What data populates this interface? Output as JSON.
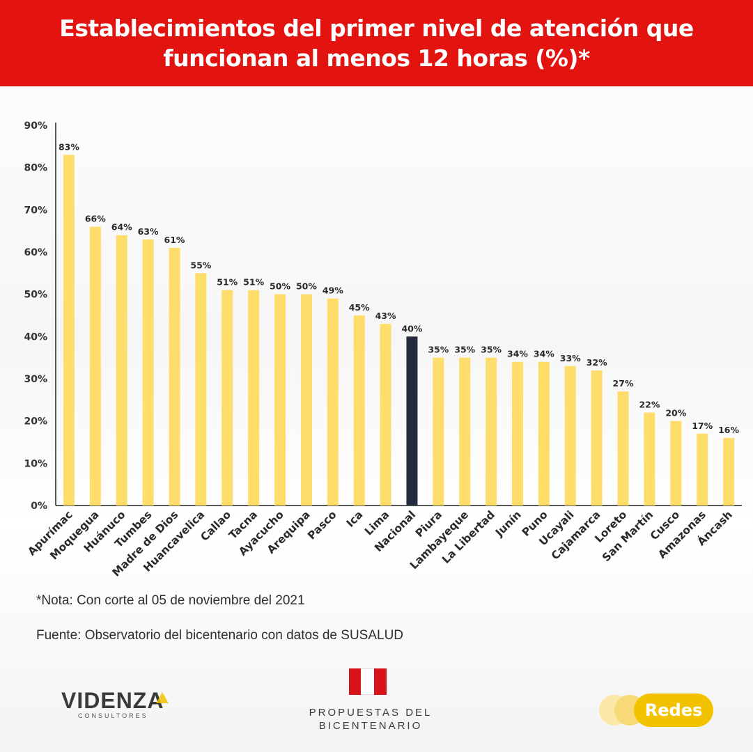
{
  "header": {
    "title_line1": "Establecimientos del primer nivel de atención que",
    "title_line2": "funcionan al menos 12 horas (%)*"
  },
  "chart_data": {
    "type": "bar",
    "categories": [
      "Apurímac",
      "Moquegua",
      "Huánuco",
      "Tumbes",
      "Madre de Dios",
      "Huancavelica",
      "Callao",
      "Tacna",
      "Ayacucho",
      "Arequipa",
      "Pasco",
      "Ica",
      "Lima",
      "Nacional",
      "Piura",
      "Lambayeque",
      "La Libertad",
      "Junín",
      "Puno",
      "Ucayali",
      "Cajamarca",
      "Loreto",
      "San Martín",
      "Cusco",
      "Amazonas",
      "Áncash"
    ],
    "values": [
      83,
      66,
      64,
      63,
      61,
      55,
      51,
      51,
      50,
      50,
      49,
      45,
      43,
      40,
      35,
      35,
      35,
      34,
      34,
      33,
      32,
      27,
      22,
      20,
      17,
      16
    ],
    "data_labels": [
      "83%",
      "66%",
      "64%",
      "63%",
      "61%",
      "55%",
      "51%",
      "51%",
      "50%",
      "50%",
      "49%",
      "45%",
      "43%",
      "40%",
      "35%",
      "35%",
      "35%",
      "34%",
      "34%",
      "33%",
      "32%",
      "27%",
      "22%",
      "20%",
      "17%",
      "16%"
    ],
    "yticks": [
      "0%",
      "10%",
      "20%",
      "30%",
      "40%",
      "50%",
      "60%",
      "70%",
      "80%",
      "90%"
    ],
    "ylim": [
      0,
      90
    ],
    "highlight_category": "Nacional",
    "bar_color": "#ffdd6b",
    "highlight_color": "#252a3e",
    "grid": false
  },
  "footer": {
    "note": "*Nota: Con corte al 05 de noviembre del 2021",
    "source": "Fuente: Observatorio del bicentenario con datos de SUSALUD"
  },
  "logos": {
    "videnza_name": "VIDENZA",
    "videnza_sub": "CONSULTORES",
    "bicentenario_line1": "PROPUESTAS DEL",
    "bicentenario_line2": "BICENTENARIO",
    "redes_label": "Redes"
  },
  "colors": {
    "header_bg": "#e3130f",
    "redes_yellow": "#f2c200"
  }
}
